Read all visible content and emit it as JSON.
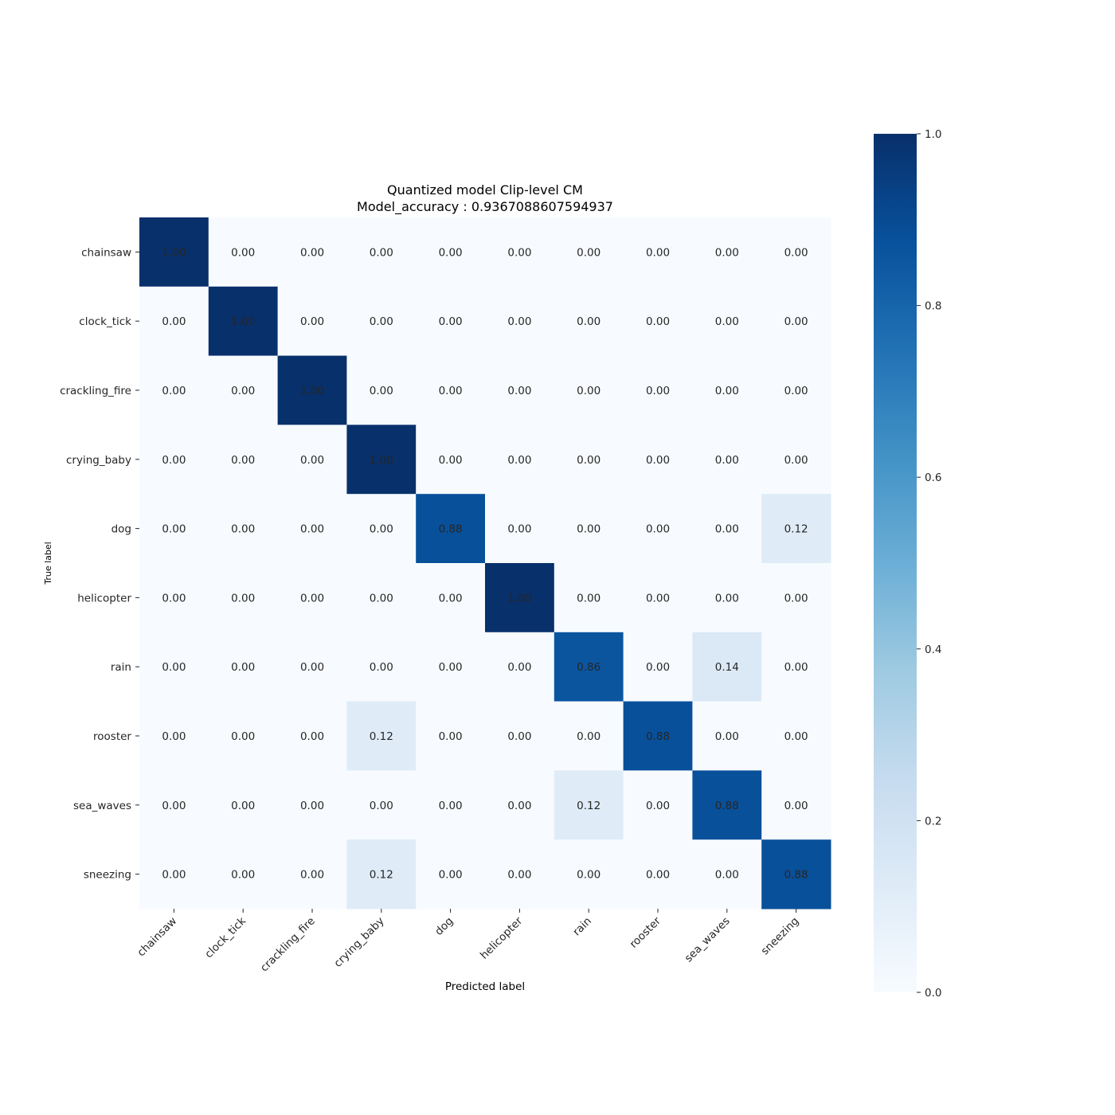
{
  "chart_data": {
    "type": "heatmap",
    "title_line1": "Quantized model Clip-level CM",
    "title_line2": " Model_accuracy : 0.9367088607594937",
    "xlabel": "Predicted label",
    "ylabel": "True label",
    "x_categories": [
      "chainsaw",
      "clock_tick",
      "crackling_fire",
      "crying_baby",
      "dog",
      "helicopter",
      "rain",
      "rooster",
      "sea_waves",
      "sneezing"
    ],
    "y_categories": [
      "chainsaw",
      "clock_tick",
      "crackling_fire",
      "crying_baby",
      "dog",
      "helicopter",
      "rain",
      "rooster",
      "sea_waves",
      "sneezing"
    ],
    "values": [
      [
        1.0,
        0.0,
        0.0,
        0.0,
        0.0,
        0.0,
        0.0,
        0.0,
        0.0,
        0.0
      ],
      [
        0.0,
        1.0,
        0.0,
        0.0,
        0.0,
        0.0,
        0.0,
        0.0,
        0.0,
        0.0
      ],
      [
        0.0,
        0.0,
        1.0,
        0.0,
        0.0,
        0.0,
        0.0,
        0.0,
        0.0,
        0.0
      ],
      [
        0.0,
        0.0,
        0.0,
        1.0,
        0.0,
        0.0,
        0.0,
        0.0,
        0.0,
        0.0
      ],
      [
        0.0,
        0.0,
        0.0,
        0.0,
        0.88,
        0.0,
        0.0,
        0.0,
        0.0,
        0.12
      ],
      [
        0.0,
        0.0,
        0.0,
        0.0,
        0.0,
        1.0,
        0.0,
        0.0,
        0.0,
        0.0
      ],
      [
        0.0,
        0.0,
        0.0,
        0.0,
        0.0,
        0.0,
        0.86,
        0.0,
        0.14,
        0.0
      ],
      [
        0.0,
        0.0,
        0.0,
        0.12,
        0.0,
        0.0,
        0.0,
        0.88,
        0.0,
        0.0
      ],
      [
        0.0,
        0.0,
        0.0,
        0.0,
        0.0,
        0.0,
        0.12,
        0.0,
        0.88,
        0.0
      ],
      [
        0.0,
        0.0,
        0.0,
        0.12,
        0.0,
        0.0,
        0.0,
        0.0,
        0.0,
        0.88
      ]
    ],
    "value_format_decimals": 2,
    "colormap": "Blues",
    "colorbar": {
      "range": [
        0.0,
        1.0
      ],
      "ticks": [
        0.0,
        0.2,
        0.4,
        0.6,
        0.8,
        1.0
      ],
      "tick_labels": [
        "0.0",
        "0.2",
        "0.4",
        "0.6",
        "0.8",
        "1.0"
      ]
    },
    "grid": false,
    "text_color_light": "#ffffff",
    "text_color_dark": "#262626"
  }
}
